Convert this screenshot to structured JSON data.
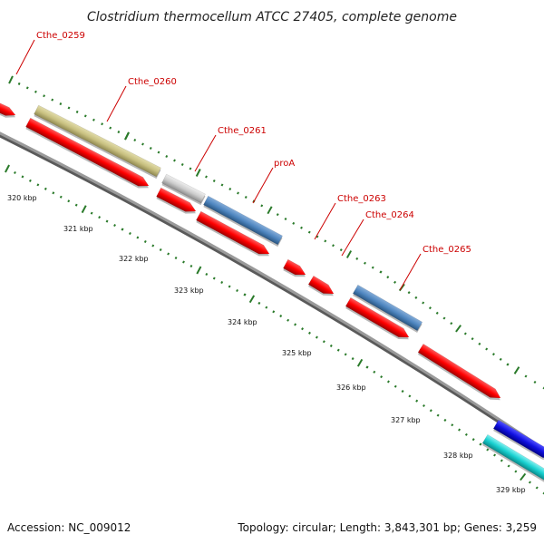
{
  "title": "Clostridium thermocellum ATCC 27405, complete genome",
  "footer": {
    "accession": "Accession: NC_009012",
    "info": "Topology: circular; Length: 3,843,301 bp; Genes: 3,259"
  },
  "colors": {
    "background": "#ffffff",
    "backbone": "#888888",
    "cds": "#ff0000",
    "ruler": "#2a7a2a",
    "label": "#cc0000",
    "track_olive": "#c8c080",
    "track_grey": "#cccccc",
    "track_steelblue": "#4f86c0",
    "track_blue": "#1010e0",
    "track_cyan": "#18d0d0"
  },
  "gene_labels": [
    {
      "name": "Cthe_0259"
    },
    {
      "name": "Cthe_0260"
    },
    {
      "name": "Cthe_0261"
    },
    {
      "name": "proA"
    },
    {
      "name": "Cthe_0263"
    },
    {
      "name": "Cthe_0264"
    },
    {
      "name": "Cthe_0265"
    }
  ],
  "ticks": [
    {
      "label": "320 kbp"
    },
    {
      "label": "321 kbp"
    },
    {
      "label": "322 kbp"
    },
    {
      "label": "323 kbp"
    },
    {
      "label": "324 kbp"
    },
    {
      "label": "325 kbp"
    },
    {
      "label": "326 kbp"
    },
    {
      "label": "327 kbp"
    },
    {
      "label": "328 kbp"
    },
    {
      "label": "329 kbp"
    }
  ]
}
